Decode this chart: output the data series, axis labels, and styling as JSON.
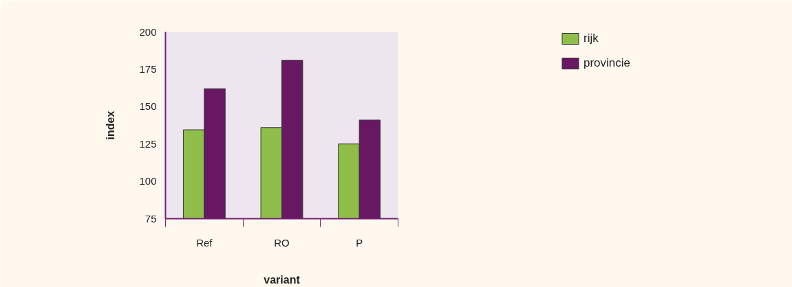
{
  "chart_data": {
    "type": "bar",
    "xlabel": "variant",
    "ylabel": "index",
    "categories": [
      "Ref",
      "RO",
      "P"
    ],
    "series": [
      {
        "name": "rijk",
        "color": "#8fbf4a",
        "values": [
          134.5,
          136,
          125
        ]
      },
      {
        "name": "provincie",
        "color": "#681863",
        "values": [
          162,
          181,
          141
        ]
      }
    ],
    "ylim": [
      75,
      200
    ],
    "yticks": [
      75,
      100,
      125,
      150,
      175,
      200
    ],
    "grid": false,
    "legend": "top right"
  }
}
